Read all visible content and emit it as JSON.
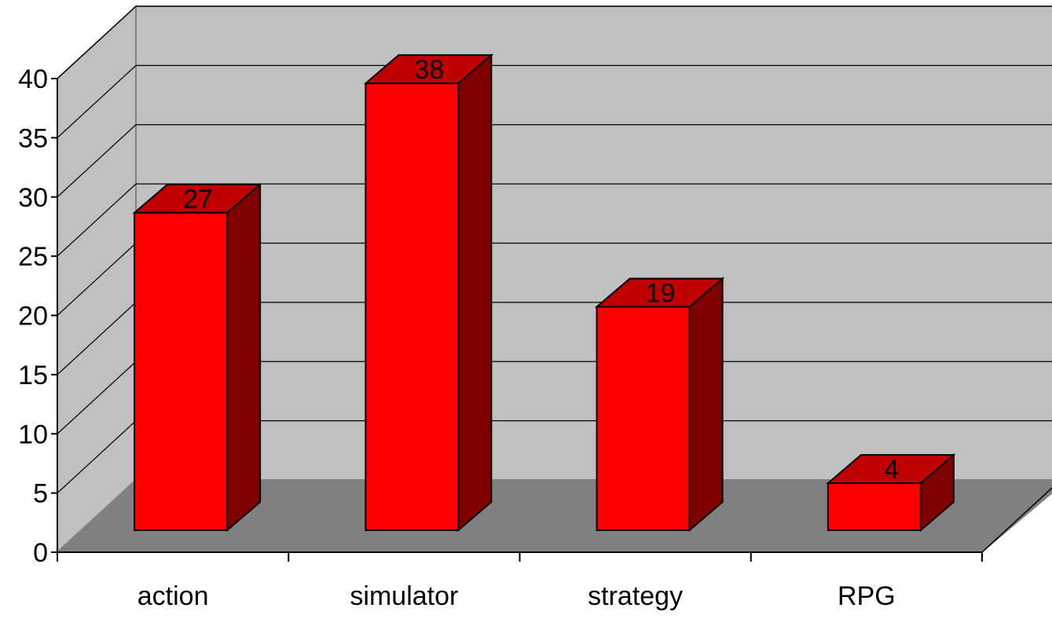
{
  "chart_data": {
    "type": "bar",
    "style": "3d-column",
    "categories": [
      "action",
      "simulator",
      "strategy",
      "RPG"
    ],
    "values": [
      27,
      38,
      19,
      4
    ],
    "data_labels": [
      "27",
      "38",
      "19",
      "4"
    ],
    "title": "",
    "xlabel": "",
    "ylabel": "",
    "ylim": [
      0,
      40
    ],
    "yticks": [
      0,
      5,
      10,
      15,
      20,
      25,
      30,
      35,
      40
    ],
    "grid": true,
    "legend": "none",
    "colors": {
      "bar_front": "#ff0000",
      "bar_top": "#c00000",
      "bar_side": "#800000",
      "back_wall": "#c0c0c0",
      "side_wall": "#c0c0c0",
      "floor": "#808080",
      "gridline": "#000000"
    }
  }
}
